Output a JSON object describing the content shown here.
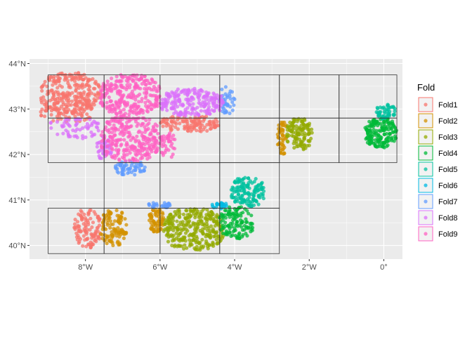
{
  "chart_data": {
    "type": "scatter",
    "title": "",
    "xlabel": "",
    "ylabel": "",
    "xlim": [
      -9.5,
      0.5
    ],
    "ylim": [
      39.7,
      44.1
    ],
    "x_ticks": [
      -8,
      -6,
      -4,
      -2,
      0
    ],
    "x_tick_labels": [
      "8°W",
      "6°W",
      "4°W",
      "2°W",
      "0°"
    ],
    "y_ticks": [
      40,
      41,
      42,
      43,
      44
    ],
    "y_tick_labels": [
      "40°N",
      "41°N",
      "42°N",
      "43°N",
      "44°N"
    ],
    "grid": true,
    "legend": {
      "title": "Fold",
      "position": "right",
      "entries": [
        "Fold1",
        "Fold2",
        "Fold3",
        "Fold4",
        "Fold5",
        "Fold6",
        "Fold7",
        "Fold8",
        "Fold9"
      ]
    },
    "colors": {
      "Fold1": "#F8766D",
      "Fold2": "#D39200",
      "Fold3": "#93AA00",
      "Fold4": "#00BA38",
      "Fold5": "#00C19F",
      "Fold6": "#00B9E3",
      "Fold7": "#619CFF",
      "Fold8": "#DB72FB",
      "Fold9": "#FF61C3"
    },
    "blocks": [
      {
        "lon": [
          -9.0,
          -7.5
        ],
        "lat": [
          42.8,
          43.75
        ]
      },
      {
        "lon": [
          -7.5,
          -6.0
        ],
        "lat": [
          42.8,
          43.75
        ]
      },
      {
        "lon": [
          -6.0,
          -4.4
        ],
        "lat": [
          42.8,
          43.75
        ]
      },
      {
        "lon": [
          -4.4,
          -2.8
        ],
        "lat": [
          42.8,
          43.75
        ]
      },
      {
        "lon": [
          -2.8,
          -1.2
        ],
        "lat": [
          42.8,
          43.75
        ]
      },
      {
        "lon": [
          -1.2,
          0.35
        ],
        "lat": [
          42.8,
          43.75
        ]
      },
      {
        "lon": [
          -9.0,
          -7.5
        ],
        "lat": [
          41.82,
          42.8
        ]
      },
      {
        "lon": [
          -7.5,
          -6.0
        ],
        "lat": [
          41.82,
          42.8
        ]
      },
      {
        "lon": [
          -6.0,
          -4.4
        ],
        "lat": [
          41.82,
          42.8
        ]
      },
      {
        "lon": [
          -4.4,
          -2.8
        ],
        "lat": [
          41.82,
          42.8
        ]
      },
      {
        "lon": [
          -2.8,
          -1.2
        ],
        "lat": [
          41.82,
          42.8
        ]
      },
      {
        "lon": [
          -1.2,
          0.35
        ],
        "lat": [
          41.82,
          42.8
        ]
      },
      {
        "lon": [
          -7.5,
          -6.0
        ],
        "lat": [
          40.82,
          41.82
        ]
      },
      {
        "lon": [
          -6.0,
          -4.4
        ],
        "lat": [
          40.82,
          41.82
        ]
      },
      {
        "lon": [
          -4.4,
          -2.8
        ],
        "lat": [
          40.82,
          41.82
        ]
      },
      {
        "lon": [
          -9.0,
          -7.5
        ],
        "lat": [
          39.82,
          40.82
        ]
      },
      {
        "lon": [
          -7.5,
          -6.0
        ],
        "lat": [
          39.82,
          40.82
        ]
      },
      {
        "lon": [
          -6.0,
          -4.4
        ],
        "lat": [
          39.82,
          40.82
        ]
      },
      {
        "lon": [
          -4.4,
          -2.8
        ],
        "lat": [
          39.82,
          40.82
        ]
      }
    ],
    "series": [
      {
        "name": "Fold1",
        "clusters": [
          {
            "lon": [
              -9.2,
              -7.6
            ],
            "lat": [
              42.9,
              43.8
            ],
            "n": 260
          },
          {
            "lon": [
              -9.2,
              -7.8
            ],
            "lat": [
              42.7,
              43.2
            ],
            "n": 80
          },
          {
            "lon": [
              -6.0,
              -4.4
            ],
            "lat": [
              42.5,
              42.85
            ],
            "n": 120
          },
          {
            "lon": [
              -8.3,
              -7.6
            ],
            "lat": [
              39.95,
              40.8
            ],
            "n": 110
          }
        ]
      },
      {
        "name": "Fold2",
        "clusters": [
          {
            "lon": [
              -7.6,
              -6.9
            ],
            "lat": [
              40.0,
              40.8
            ],
            "n": 110
          },
          {
            "lon": [
              -6.3,
              -5.9
            ],
            "lat": [
              40.3,
              40.8
            ],
            "n": 70
          },
          {
            "lon": [
              -2.85,
              -2.6
            ],
            "lat": [
              42.0,
              42.75
            ],
            "n": 50
          }
        ]
      },
      {
        "name": "Fold3",
        "clusters": [
          {
            "lon": [
              -5.9,
              -4.3
            ],
            "lat": [
              39.9,
              40.8
            ],
            "n": 300
          },
          {
            "lon": [
              -2.6,
              -1.9
            ],
            "lat": [
              42.1,
              42.8
            ],
            "n": 120
          }
        ]
      },
      {
        "name": "Fold4",
        "clusters": [
          {
            "lon": [
              -4.4,
              -3.5
            ],
            "lat": [
              40.15,
              40.85
            ],
            "n": 120
          },
          {
            "lon": [
              -0.5,
              0.35
            ],
            "lat": [
              42.15,
              42.8
            ],
            "n": 170
          }
        ]
      },
      {
        "name": "Fold5",
        "clusters": [
          {
            "lon": [
              -4.1,
              -3.2
            ],
            "lat": [
              40.85,
              41.5
            ],
            "n": 140
          },
          {
            "lon": [
              -0.2,
              0.3
            ],
            "lat": [
              42.78,
              43.1
            ],
            "n": 50
          }
        ]
      },
      {
        "name": "Fold6",
        "clusters": [
          {
            "lon": [
              -4.6,
              -4.2
            ],
            "lat": [
              40.8,
              40.95
            ],
            "n": 25
          }
        ]
      },
      {
        "name": "Fold7",
        "clusters": [
          {
            "lon": [
              -7.2,
              -6.4
            ],
            "lat": [
              41.55,
              41.85
            ],
            "n": 60
          },
          {
            "lon": [
              -6.3,
              -5.7
            ],
            "lat": [
              40.82,
              40.95
            ],
            "n": 30
          },
          {
            "lon": [
              -4.4,
              -4.0
            ],
            "lat": [
              42.9,
              43.5
            ],
            "n": 40
          }
        ]
      },
      {
        "name": "Fold8",
        "clusters": [
          {
            "lon": [
              -6.0,
              -4.3
            ],
            "lat": [
              42.85,
              43.45
            ],
            "n": 220
          },
          {
            "lon": [
              -9.0,
              -7.6
            ],
            "lat": [
              42.35,
              42.8
            ],
            "n": 60
          },
          {
            "lon": [
              -7.7,
              -7.3
            ],
            "lat": [
              41.9,
              42.4
            ],
            "n": 40
          }
        ]
      },
      {
        "name": "Fold9",
        "clusters": [
          {
            "lon": [
              -7.6,
              -6.0
            ],
            "lat": [
              42.85,
              43.75
            ],
            "n": 280
          },
          {
            "lon": [
              -7.6,
              -6.0
            ],
            "lat": [
              41.85,
              42.85
            ],
            "n": 280
          },
          {
            "lon": [
              -6.0,
              -5.6
            ],
            "lat": [
              41.9,
              42.5
            ],
            "n": 40
          }
        ]
      }
    ]
  }
}
